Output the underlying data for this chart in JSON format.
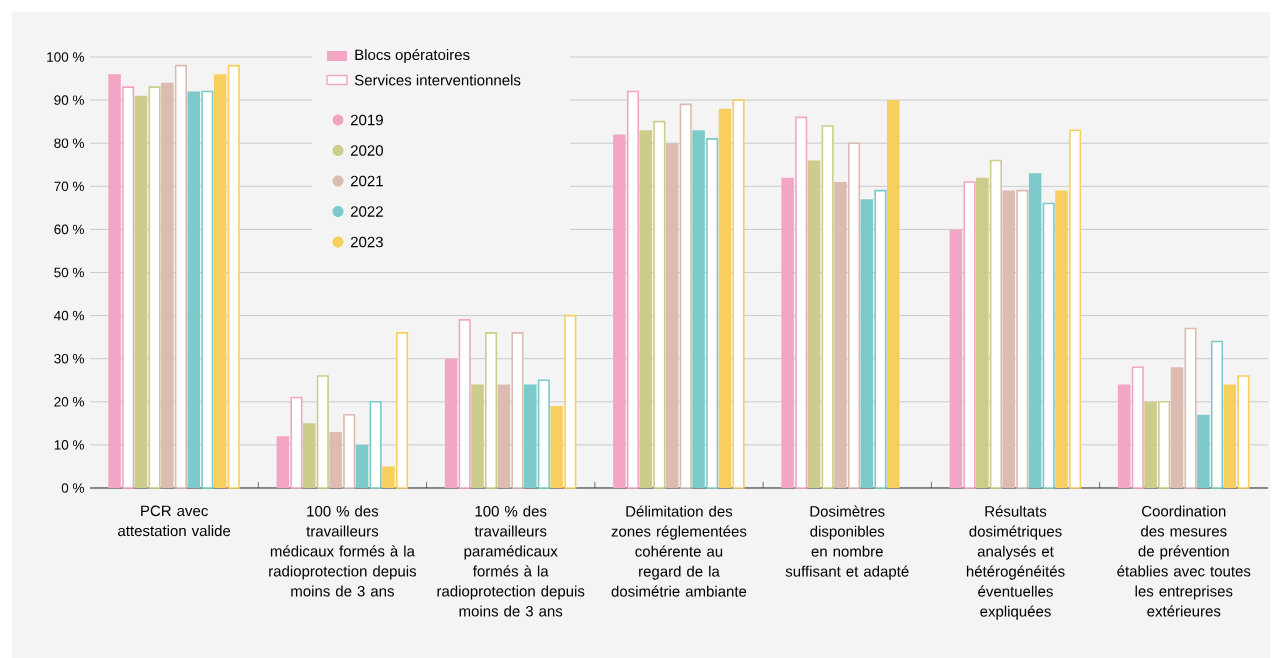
{
  "chart_data": {
    "type": "bar",
    "categories": [
      "PCR avec attestation valide",
      "100 % des travailleurs médicaux formés à la radioprotection depuis moins de 3 ans",
      "100 % des travailleurs paramédicaux formés à la radioprotection depuis moins de 3 ans",
      "Délimitation des zones réglementées cohérente au regard de la dosimétrie ambiante",
      "Dosimètres disponibles en nombre suffisant et adapté",
      "Résultats dosimétriques analysés et hétérogénéités éventuelles expliquées",
      "Coordination des mesures de prévention établies avec toutes les entreprises extérieures"
    ],
    "series": [
      {
        "name": "2019",
        "color": "#f2a5c5",
        "values": [
          96,
          12,
          30,
          82,
          72,
          60,
          24
        ]
      },
      {
        "color": "#f2a5c5",
        "line_style": "solid",
        "values": [
          93,
          21,
          39,
          92,
          86,
          71,
          28
        ]
      },
      {
        "name": "2020",
        "color": "#cccd8b",
        "values": [
          91,
          15,
          24,
          83,
          76,
          72,
          20
        ]
      },
      {
        "color": "#cccd8b",
        "line_style": "solid",
        "values": [
          93,
          26,
          36,
          85,
          84,
          76,
          20
        ]
      },
      {
        "name": "2021",
        "color": "#dcbcb1",
        "values": [
          94,
          13,
          24,
          80,
          71,
          69,
          28
        ]
      },
      {
        "color": "#dcbcb1",
        "line_style": "solid",
        "values": [
          98,
          17,
          36,
          89,
          80,
          69,
          37
        ]
      },
      {
        "name": "2022",
        "color": "#7ccaca",
        "values": [
          92,
          10,
          24,
          83,
          67,
          73,
          17
        ]
      },
      {
        "color": "#7ccaca",
        "line_style": "solid",
        "values": [
          92,
          20,
          25,
          81,
          69,
          66,
          34
        ]
      },
      {
        "name": "2023",
        "color": "#f6cf5f",
        "values": [
          96,
          5,
          19,
          88,
          90,
          69,
          24
        ]
      },
      {
        "color": "#f6cf5f",
        "line_style": "solid",
        "values": [
          98,
          36,
          40,
          90,
          null,
          83,
          26
        ]
      }
    ],
    "annotations": [
      "Blocs opératoires",
      "Services interventionnels"
    ],
    "ylim": [
      0,
      100
    ],
    "yticks": [
      {
        "value": 0,
        "label": "0 %"
      },
      {
        "value": 10,
        "label": "10 %"
      },
      {
        "value": 20,
        "label": "20 %"
      },
      {
        "value": 30,
        "label": "30 %"
      },
      {
        "value": 40,
        "label": "40 %"
      },
      {
        "value": 50,
        "label": "50 %"
      },
      {
        "value": 60,
        "label": "60 %"
      },
      {
        "value": 70,
        "label": "70 %"
      },
      {
        "value": 80,
        "label": "80 %"
      },
      {
        "value": 90,
        "label": "90 %"
      },
      {
        "value": 100,
        "label": "100 %"
      }
    ],
    "grid": "y",
    "legend": "top left"
  }
}
